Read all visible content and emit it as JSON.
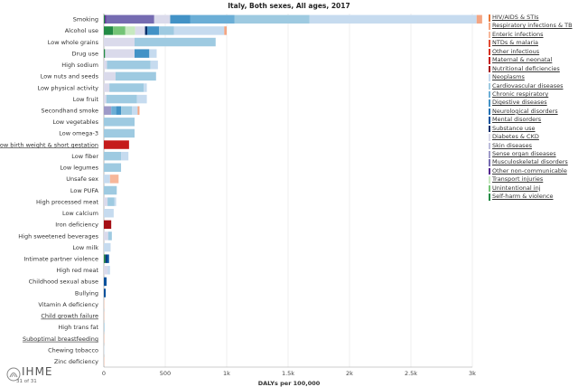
{
  "title": "Italy, Both sexes, All ages, 2017",
  "page_count": "31 of 31",
  "logo_text": "IHME",
  "chart_data": {
    "type": "bar",
    "orientation": "horizontal",
    "stacked": true,
    "title": "Italy, Both sexes, All ages, 2017",
    "xlabel": "DALYs per 100,000",
    "ylabel": "",
    "xlim": [
      0,
      3000
    ],
    "xticks": [
      0,
      500,
      1000,
      1500,
      2000,
      2500,
      3000
    ],
    "xtick_labels": [
      "0",
      "500",
      "1k",
      "1.5k",
      "2k",
      "2.5k",
      "3k"
    ],
    "grid": "vertical",
    "legend_position": "right",
    "categories": [
      "Smoking",
      "Alcohol use",
      "Low whole grains",
      "Drug use",
      "High sodium",
      "Low nuts and seeds",
      "Low physical activity",
      "Low fruit",
      "Secondhand smoke",
      "Low vegetables",
      "Low omega-3",
      "Low birth weight & short gestation",
      "Low fiber",
      "Low legumes",
      "Unsafe sex",
      "Low PUFA",
      "High processed meat",
      "Low calcium",
      "Iron deficiency",
      "High sweetened beverages",
      "Low milk",
      "Intimate partner violence",
      "High red meat",
      "Childhood sexual abuse",
      "Bullying",
      "Vitamin A deficiency",
      "Child growth failure",
      "High trans fat",
      "Suboptimal breastfeeding",
      "Chewing tobacco",
      "Zinc deficiency"
    ],
    "category_underlined": [
      false,
      false,
      false,
      false,
      false,
      false,
      false,
      false,
      false,
      false,
      false,
      true,
      false,
      false,
      false,
      false,
      false,
      false,
      false,
      false,
      false,
      false,
      false,
      false,
      false,
      false,
      true,
      false,
      true,
      false,
      false
    ],
    "causes": [
      {
        "name": "HIV/AIDS & STIs",
        "color": "#e8793a"
      },
      {
        "name": "Respiratory infections & TB",
        "color": "#f4a582"
      },
      {
        "name": "Enteric infections",
        "color": "#f7b79a"
      },
      {
        "name": "NTDs & malaria",
        "color": "#e34a33"
      },
      {
        "name": "Other infectious",
        "color": "#d7301f"
      },
      {
        "name": "Maternal & neonatal",
        "color": "#c51b1b"
      },
      {
        "name": "Nutritional deficiencies",
        "color": "#a50f15"
      },
      {
        "name": "Neoplasms",
        "color": "#c6dbef"
      },
      {
        "name": "Cardiovascular diseases",
        "color": "#9ecae1"
      },
      {
        "name": "Chronic respiratory",
        "color": "#6baed6"
      },
      {
        "name": "Digestive diseases",
        "color": "#4292c6"
      },
      {
        "name": "Neurological disorders",
        "color": "#2171b5"
      },
      {
        "name": "Mental disorders",
        "color": "#08519c"
      },
      {
        "name": "Substance use",
        "color": "#08306b"
      },
      {
        "name": "Diabetes & CKD",
        "color": "#dadaeb"
      },
      {
        "name": "Skin diseases",
        "color": "#bcbddc"
      },
      {
        "name": "Sense organ diseases",
        "color": "#9e9ac8"
      },
      {
        "name": "Musculoskeletal disorders",
        "color": "#756bb1"
      },
      {
        "name": "Other non-communicable",
        "color": "#54278f"
      },
      {
        "name": "Transport injuries",
        "color": "#c7e9c0"
      },
      {
        "name": "Unintentional inj",
        "color": "#74c476"
      },
      {
        "name": "Self-harm & violence",
        "color": "#238b45"
      }
    ],
    "series_values": [
      [
        {
          "cause": "Self-harm & violence",
          "value": 8
        },
        {
          "cause": "Other non-communicable",
          "value": 12
        },
        {
          "cause": "Musculoskeletal disorders",
          "value": 390
        },
        {
          "cause": "Diabetes & CKD",
          "value": 130
        },
        {
          "cause": "Digestive diseases",
          "value": 165
        },
        {
          "cause": "Chronic respiratory",
          "value": 360
        },
        {
          "cause": "Cardiovascular diseases",
          "value": 610
        },
        {
          "cause": "Neoplasms",
          "value": 1360
        },
        {
          "cause": "Respiratory infections & TB",
          "value": 45
        }
      ],
      [
        {
          "cause": "Self-harm & violence",
          "value": 75
        },
        {
          "cause": "Unintentional inj",
          "value": 100
        },
        {
          "cause": "Transport injuries",
          "value": 80
        },
        {
          "cause": "Diabetes & CKD",
          "value": 80
        },
        {
          "cause": "Substance use",
          "value": 20
        },
        {
          "cause": "Digestive diseases",
          "value": 95
        },
        {
          "cause": "Cardiovascular diseases",
          "value": 120
        },
        {
          "cause": "Neoplasms",
          "value": 410
        },
        {
          "cause": "Respiratory infections & TB",
          "value": 20
        }
      ],
      [
        {
          "cause": "Diabetes & CKD",
          "value": 250
        },
        {
          "cause": "Cardiovascular diseases",
          "value": 660
        }
      ],
      [
        {
          "cause": "Self-harm & violence",
          "value": 10
        },
        {
          "cause": "Diabetes & CKD",
          "value": 240
        },
        {
          "cause": "Digestive diseases",
          "value": 120
        },
        {
          "cause": "Neoplasms",
          "value": 60
        }
      ],
      [
        {
          "cause": "Diabetes & CKD",
          "value": 25
        },
        {
          "cause": "Cardiovascular diseases",
          "value": 355
        },
        {
          "cause": "Neoplasms",
          "value": 60
        }
      ],
      [
        {
          "cause": "Diabetes & CKD",
          "value": 95
        },
        {
          "cause": "Cardiovascular diseases",
          "value": 330
        }
      ],
      [
        {
          "cause": "Diabetes & CKD",
          "value": 45
        },
        {
          "cause": "Cardiovascular diseases",
          "value": 280
        },
        {
          "cause": "Neoplasms",
          "value": 25
        }
      ],
      [
        {
          "cause": "Diabetes & CKD",
          "value": 20
        },
        {
          "cause": "Cardiovascular diseases",
          "value": 250
        },
        {
          "cause": "Neoplasms",
          "value": 80
        }
      ],
      [
        {
          "cause": "Sense organ diseases",
          "value": 60
        },
        {
          "cause": "Chronic respiratory",
          "value": 40
        },
        {
          "cause": "Digestive diseases",
          "value": 40
        },
        {
          "cause": "Cardiovascular diseases",
          "value": 90
        },
        {
          "cause": "Neoplasms",
          "value": 45
        },
        {
          "cause": "Respiratory infections & TB",
          "value": 15
        }
      ],
      [
        {
          "cause": "Cardiovascular diseases",
          "value": 250
        }
      ],
      [
        {
          "cause": "Cardiovascular diseases",
          "value": 250
        }
      ],
      [
        {
          "cause": "Maternal & neonatal",
          "value": 205
        }
      ],
      [
        {
          "cause": "Cardiovascular diseases",
          "value": 140
        },
        {
          "cause": "Neoplasms",
          "value": 60
        }
      ],
      [
        {
          "cause": "Cardiovascular diseases",
          "value": 140
        }
      ],
      [
        {
          "cause": "Neoplasms",
          "value": 50
        },
        {
          "cause": "Enteric infections",
          "value": 70
        }
      ],
      [
        {
          "cause": "Cardiovascular diseases",
          "value": 105
        }
      ],
      [
        {
          "cause": "Diabetes & CKD",
          "value": 30
        },
        {
          "cause": "Cardiovascular diseases",
          "value": 55
        },
        {
          "cause": "Neoplasms",
          "value": 15
        }
      ],
      [
        {
          "cause": "Neoplasms",
          "value": 80
        }
      ],
      [
        {
          "cause": "Nutritional deficiencies",
          "value": 60
        }
      ],
      [
        {
          "cause": "Diabetes & CKD",
          "value": 35
        },
        {
          "cause": "Cardiovascular diseases",
          "value": 30
        }
      ],
      [
        {
          "cause": "Neoplasms",
          "value": 55
        }
      ],
      [
        {
          "cause": "Self-harm & violence",
          "value": 12
        },
        {
          "cause": "Substance use",
          "value": 10
        },
        {
          "cause": "Mental disorders",
          "value": 20
        }
      ],
      [
        {
          "cause": "Diabetes & CKD",
          "value": 30
        },
        {
          "cause": "Neoplasms",
          "value": 20
        }
      ],
      [
        {
          "cause": "Mental disorders",
          "value": 22
        }
      ],
      [
        {
          "cause": "Mental disorders",
          "value": 15
        }
      ],
      [
        {
          "cause": "Enteric infections",
          "value": 3
        }
      ],
      [
        {
          "cause": "Enteric infections",
          "value": 1
        }
      ],
      [
        {
          "cause": "Cardiovascular diseases",
          "value": 5
        }
      ],
      [
        {
          "cause": "Enteric infections",
          "value": 1
        }
      ],
      [
        {
          "cause": "Neoplasms",
          "value": 1
        }
      ],
      [
        {
          "cause": "Enteric infections",
          "value": 0.5
        }
      ]
    ]
  }
}
